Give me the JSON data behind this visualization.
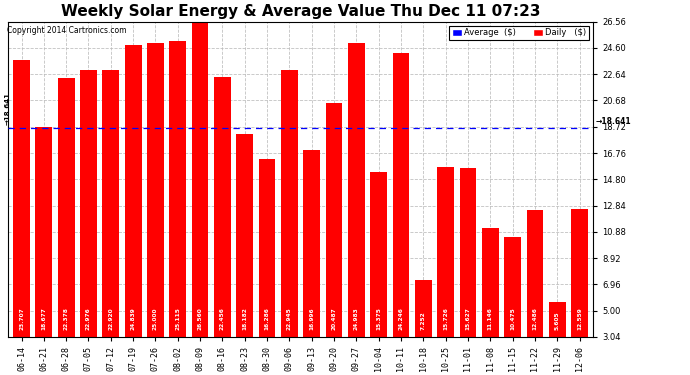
{
  "title": "Weekly Solar Energy & Average Value Thu Dec 11 07:23",
  "copyright": "Copyright 2014 Cartronics.com",
  "categories": [
    "06-14",
    "06-21",
    "06-28",
    "07-05",
    "07-12",
    "07-19",
    "07-26",
    "08-02",
    "08-09",
    "08-16",
    "08-23",
    "08-30",
    "09-06",
    "09-13",
    "09-20",
    "09-27",
    "10-04",
    "10-11",
    "10-18",
    "10-25",
    "11-01",
    "11-08",
    "11-15",
    "11-22",
    "11-29",
    "12-06"
  ],
  "values": [
    23.707,
    18.677,
    22.378,
    22.976,
    22.92,
    24.839,
    25.0,
    25.115,
    26.56,
    22.456,
    18.182,
    16.286,
    22.945,
    16.996,
    20.487,
    24.983,
    15.375,
    24.246,
    7.252,
    15.726,
    15.627,
    11.146,
    10.475,
    12.486,
    5.605,
    12.559
  ],
  "average": 18.641,
  "bar_color": "#ff0000",
  "average_line_color": "#0000ff",
  "background_color": "#ffffff",
  "grid_color": "#bbbbbb",
  "ylim_min": 3.04,
  "ylim_max": 26.56,
  "yticks": [
    3.04,
    5.0,
    6.96,
    8.92,
    10.88,
    12.84,
    14.8,
    16.76,
    18.72,
    20.68,
    22.64,
    24.6,
    26.56
  ],
  "title_fontsize": 11,
  "value_fontsize": 4.2,
  "tick_fontsize": 6,
  "legend_avg_color": "#0000ff",
  "legend_daily_color": "#ff0000"
}
